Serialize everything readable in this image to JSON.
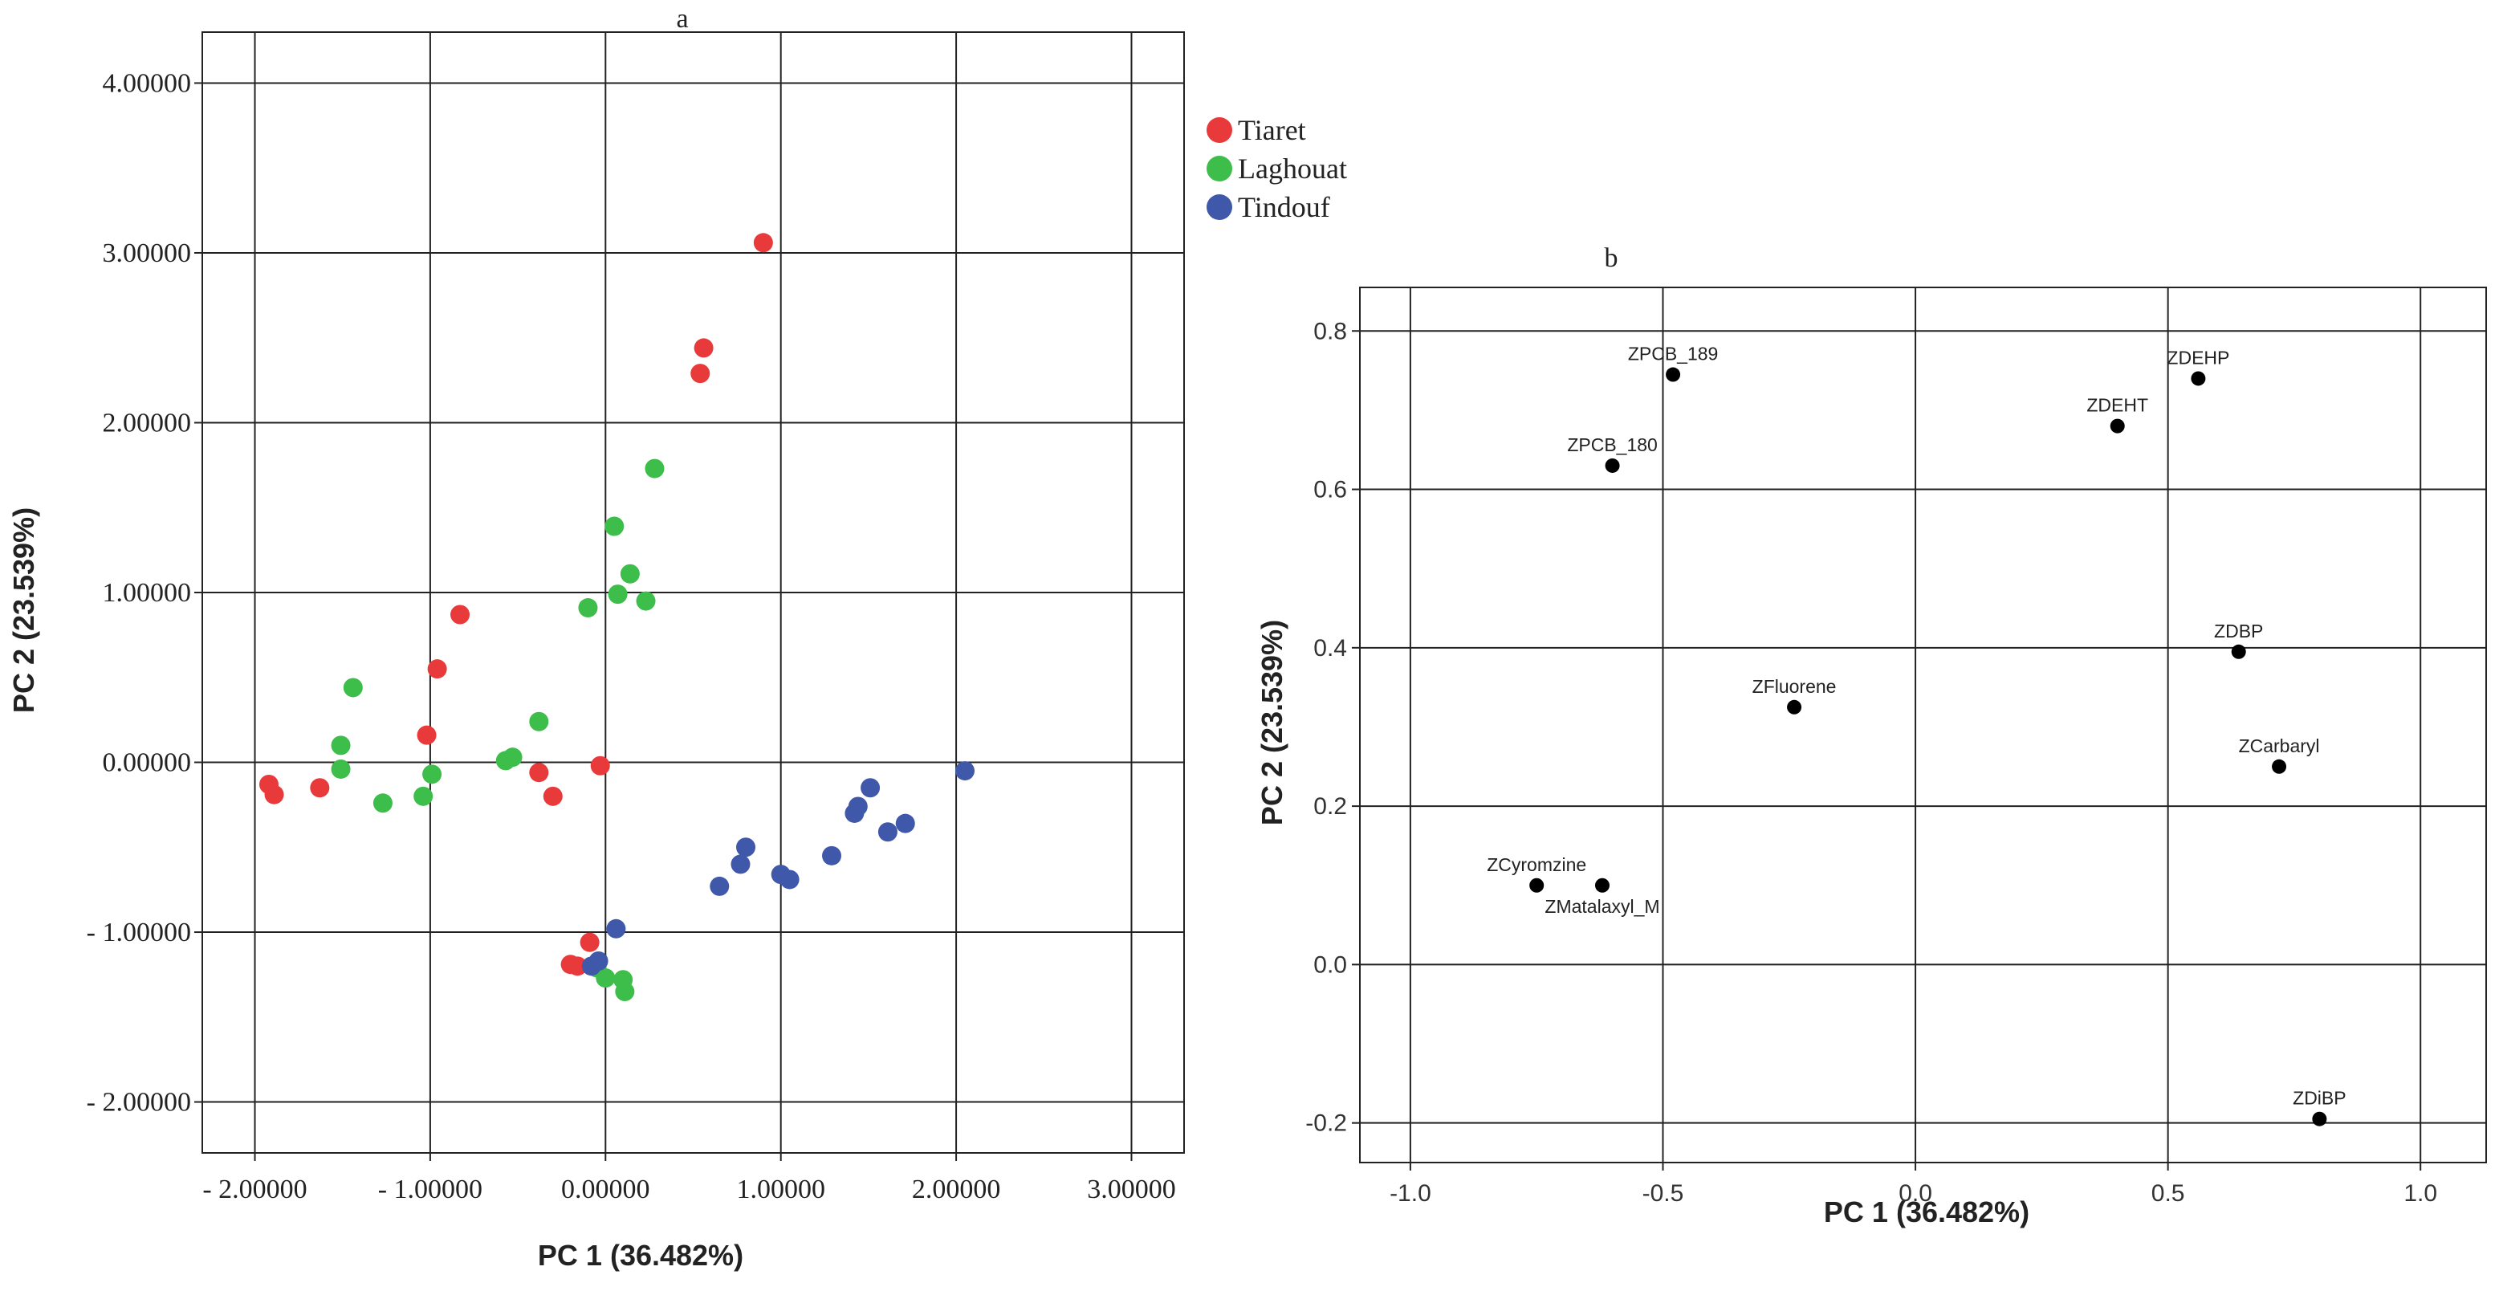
{
  "chart_data": [
    {
      "panel": "a",
      "type": "scatter",
      "title": "a",
      "xlabel": "PC 1 (36.482%)",
      "ylabel": "PC 2 (23.539%)",
      "xlim": [
        -2.3,
        3.3
      ],
      "ylim": [
        -2.3,
        4.3
      ],
      "xticks": [
        -2,
        -1,
        0,
        1,
        2,
        3
      ],
      "yticks": [
        -2,
        -1,
        0,
        1,
        2,
        3,
        4
      ],
      "xtick_labels": [
        "- 2.00000",
        "- 1.00000",
        "0.00000",
        "1.00000",
        "2.00000",
        "3.00000"
      ],
      "ytick_labels": [
        "- 2.00000",
        "- 1.00000",
        "0.00000",
        "1.00000",
        "2.00000",
        "3.00000",
        "4.00000"
      ],
      "grid": true,
      "legend_position": "right",
      "series": [
        {
          "name": "Tiaret",
          "color": "#e8393b",
          "points": [
            [
              0.9,
              3.06
            ],
            [
              0.56,
              2.44
            ],
            [
              0.54,
              2.29
            ],
            [
              -0.83,
              0.87
            ],
            [
              -0.96,
              0.55
            ],
            [
              -1.02,
              0.16
            ],
            [
              -1.92,
              -0.13
            ],
            [
              -1.89,
              -0.19
            ],
            [
              -1.63,
              -0.15
            ],
            [
              -0.38,
              -0.06
            ],
            [
              -0.3,
              -0.2
            ],
            [
              -0.03,
              -0.02
            ],
            [
              -0.09,
              -1.06
            ],
            [
              -0.2,
              -1.19
            ],
            [
              -0.16,
              -1.2
            ]
          ]
        },
        {
          "name": "Laghouat",
          "color": "#3dbd4a",
          "points": [
            [
              0.28,
              1.73
            ],
            [
              0.05,
              1.39
            ],
            [
              0.14,
              1.11
            ],
            [
              0.07,
              0.99
            ],
            [
              0.23,
              0.95
            ],
            [
              -0.1,
              0.91
            ],
            [
              -1.44,
              0.44
            ],
            [
              -0.38,
              0.24
            ],
            [
              -1.51,
              0.1
            ],
            [
              -0.57,
              0.01
            ],
            [
              -0.53,
              0.03
            ],
            [
              -1.51,
              -0.04
            ],
            [
              -0.99,
              -0.07
            ],
            [
              -1.27,
              -0.24
            ],
            [
              -1.04,
              -0.2
            ],
            [
              -0.05,
              -1.21
            ],
            [
              0.0,
              -1.27
            ],
            [
              0.1,
              -1.28
            ],
            [
              0.11,
              -1.35
            ]
          ]
        },
        {
          "name": "Tindouf",
          "color": "#3f58a9",
          "points": [
            [
              2.05,
              -0.05
            ],
            [
              1.51,
              -0.15
            ],
            [
              1.44,
              -0.26
            ],
            [
              1.42,
              -0.3
            ],
            [
              1.71,
              -0.36
            ],
            [
              1.61,
              -0.41
            ],
            [
              1.29,
              -0.55
            ],
            [
              0.8,
              -0.5
            ],
            [
              0.77,
              -0.6
            ],
            [
              1.0,
              -0.66
            ],
            [
              1.05,
              -0.69
            ],
            [
              0.65,
              -0.73
            ],
            [
              0.06,
              -0.98
            ],
            [
              -0.04,
              -1.17
            ],
            [
              -0.08,
              -1.2
            ]
          ]
        }
      ]
    },
    {
      "panel": "b",
      "type": "scatter",
      "title": "b",
      "xlabel": "PC 1 (36.482%)",
      "ylabel": "PC 2 (23.539%)",
      "xlim": [
        -1.1,
        1.13
      ],
      "ylim": [
        -0.25,
        0.855
      ],
      "xticks": [
        -1.0,
        -0.5,
        0.0,
        0.5,
        1.0
      ],
      "yticks": [
        -0.2,
        0.0,
        0.2,
        0.4,
        0.6,
        0.8
      ],
      "xtick_labels": [
        "-1.0",
        "-0.5",
        "0.0",
        "0.5",
        "1.0"
      ],
      "ytick_labels": [
        "-0.2",
        "0.0",
        "0.2",
        "0.4",
        "0.6",
        "0.8"
      ],
      "grid": true,
      "marker_color": "#000000",
      "points": [
        {
          "label": "ZPCB_189",
          "x": -0.48,
          "y": 0.745,
          "label_pos": "above"
        },
        {
          "label": "ZPCB_180",
          "x": -0.6,
          "y": 0.63,
          "label_pos": "above"
        },
        {
          "label": "ZDEHP",
          "x": 0.56,
          "y": 0.74,
          "label_pos": "above"
        },
        {
          "label": "ZDEHT",
          "x": 0.4,
          "y": 0.68,
          "label_pos": "above"
        },
        {
          "label": "ZDBP",
          "x": 0.64,
          "y": 0.395,
          "label_pos": "above"
        },
        {
          "label": "ZFluorene",
          "x": -0.24,
          "y": 0.325,
          "label_pos": "above"
        },
        {
          "label": "ZCarbaryl",
          "x": 0.72,
          "y": 0.25,
          "label_pos": "above"
        },
        {
          "label": "ZCyromzine",
          "x": -0.75,
          "y": 0.1,
          "label_pos": "above"
        },
        {
          "label": "ZMatalaxyl_M",
          "x": -0.62,
          "y": 0.1,
          "label_pos": "below"
        },
        {
          "label": "ZDiBP",
          "x": 0.8,
          "y": -0.195,
          "label_pos": "above"
        }
      ]
    }
  ]
}
